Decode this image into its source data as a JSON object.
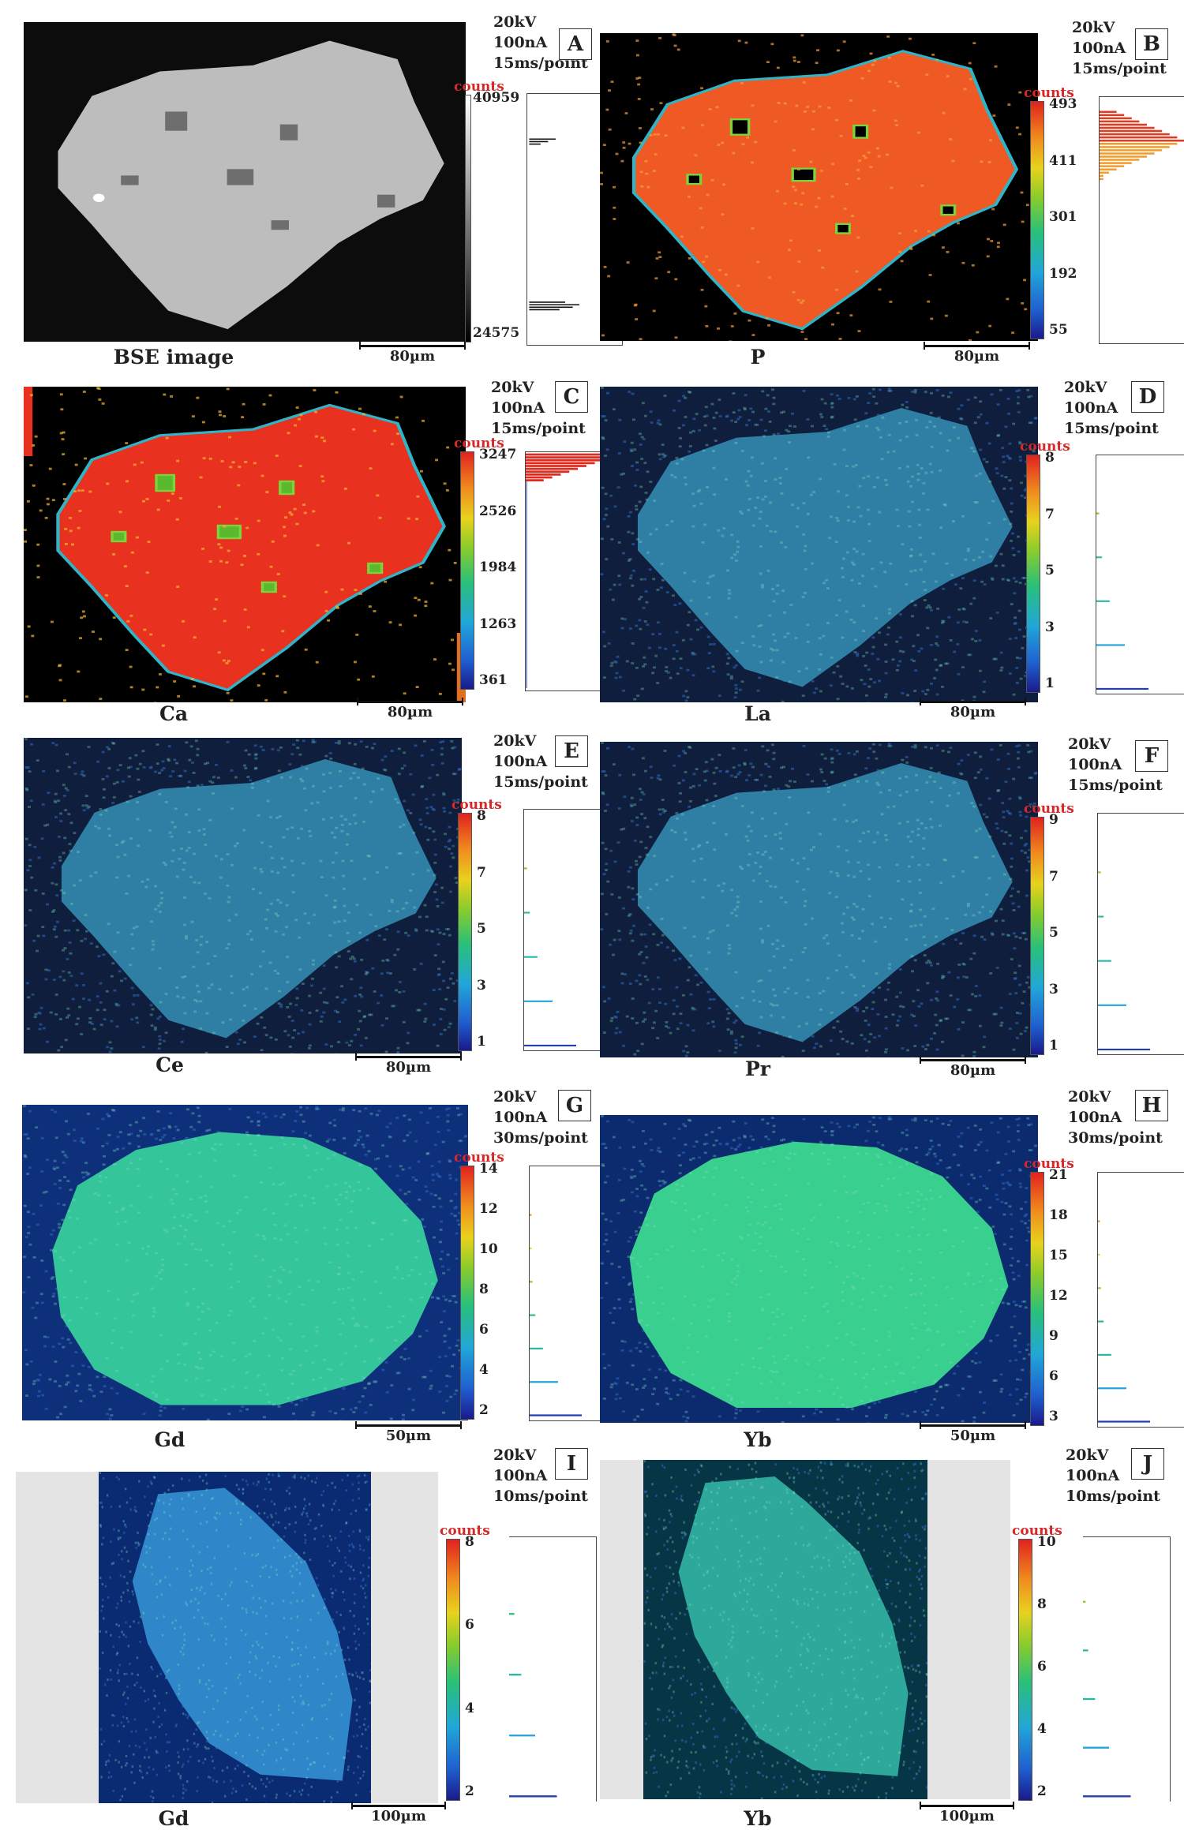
{
  "panels": [
    {
      "id": "A",
      "element": "BSE image",
      "acq": "20kV\n100nA\n15ms/point",
      "ticks": [
        "40959",
        "24575"
      ],
      "scale": "80µm",
      "counts": "counts"
    },
    {
      "id": "B",
      "element": "P",
      "acq": "20kV\n100nA\n15ms/point",
      "ticks": [
        "493",
        "411",
        "301",
        "192",
        "55"
      ],
      "scale": "80µm",
      "counts": "counts"
    },
    {
      "id": "C",
      "element": "Ca",
      "acq": "20kV\n100nA\n15ms/point",
      "ticks": [
        "3247",
        "2526",
        "1984",
        "1263",
        "361"
      ],
      "scale": "80µm",
      "counts": "counts"
    },
    {
      "id": "D",
      "element": "La",
      "acq": "20kV\n100nA\n15ms/point",
      "ticks": [
        "8",
        "7",
        "5",
        "3",
        "1"
      ],
      "scale": "80µm",
      "counts": "counts"
    },
    {
      "id": "E",
      "element": "Ce",
      "acq": "20kV\n100nA\n15ms/point",
      "ticks": [
        "8",
        "7",
        "5",
        "3",
        "1"
      ],
      "scale": "80µm",
      "counts": "counts"
    },
    {
      "id": "F",
      "element": "Pr",
      "acq": "20kV\n100nA\n15ms/point",
      "ticks": [
        "9",
        "7",
        "5",
        "3",
        "1"
      ],
      "scale": "80µm",
      "counts": "counts"
    },
    {
      "id": "G",
      "element": "Gd",
      "acq": "20kV\n100nA\n30ms/point",
      "ticks": [
        "14",
        "12",
        "10",
        "8",
        "6",
        "4",
        "2"
      ],
      "scale": "50µm",
      "counts": "counts"
    },
    {
      "id": "H",
      "element": "Yb",
      "acq": "20kV\n100nA\n30ms/point",
      "ticks": [
        "21",
        "18",
        "15",
        "12",
        "9",
        "6",
        "3"
      ],
      "scale": "50µm",
      "counts": "counts"
    },
    {
      "id": "I",
      "element": "Gd",
      "acq": "20kV\n100nA\n10ms/point",
      "ticks": [
        "8",
        "6",
        "4",
        "2"
      ],
      "scale": "100µm",
      "counts": "counts"
    },
    {
      "id": "J",
      "element": "Yb",
      "acq": "20kV\n100nA\n10ms/point",
      "ticks": [
        "10",
        "8",
        "6",
        "4",
        "2"
      ],
      "scale": "100µm",
      "counts": "counts"
    }
  ],
  "colors": {
    "bse_bg": "#0c0c0c",
    "bse_grain": "#bdbdbd",
    "bse_incl": "#6e6e6e",
    "p_grain": "#ef5a24",
    "ca_grain": "#e8321f",
    "map_black": "#000000",
    "ree_bg": "#0f1e3c",
    "ree_grain": "#2f7fa5",
    "gd30_bg": "#0e2f7a",
    "gd30_grain": "#34c59a",
    "yb30_bg": "#0c2a6e",
    "yb30_grain": "#39cf8e",
    "gd10_bg": "#0a2a72",
    "gd10_grain": "#2f86c8",
    "yb10_bg": "#063646",
    "yb10_grain": "#2ea89a",
    "frame_gray": "#e4e4e4"
  }
}
